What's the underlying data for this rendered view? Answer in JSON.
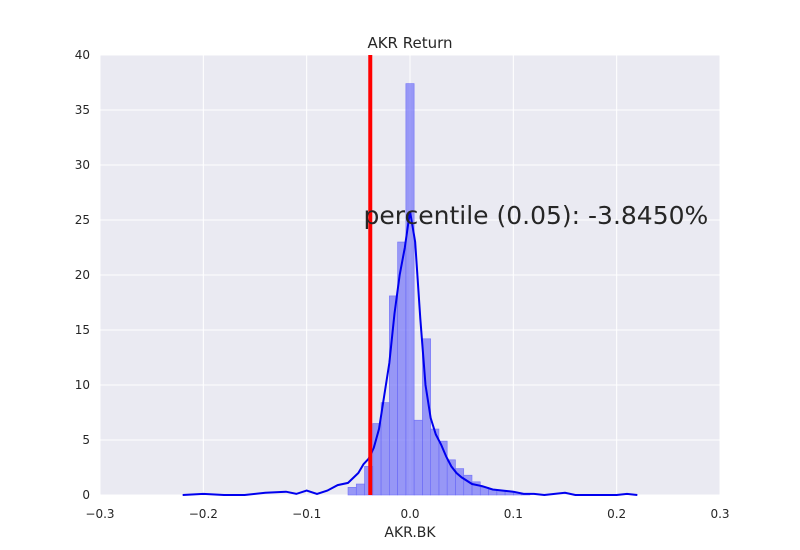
{
  "chart_data": {
    "type": "bar",
    "title": "AKR Return",
    "xlabel": "AKR.BK",
    "ylabel": "",
    "xlim": [
      -0.3,
      0.3
    ],
    "ylim": [
      0,
      40
    ],
    "xtick_labels": [
      "−0.3",
      "−0.2",
      "−0.1",
      "0.0",
      "0.1",
      "0.2",
      "0.3"
    ],
    "xtick_values": [
      -0.3,
      -0.2,
      -0.1,
      0.0,
      0.1,
      0.2,
      0.3
    ],
    "ytick_labels": [
      "0",
      "5",
      "10",
      "15",
      "20",
      "25",
      "30",
      "35",
      "40"
    ],
    "ytick_values": [
      0,
      5,
      10,
      15,
      20,
      25,
      30,
      35,
      40
    ],
    "grid": true,
    "histogram": {
      "bins": [
        [
          -0.06,
          -0.052,
          0.7
        ],
        [
          -0.052,
          -0.044,
          1.0
        ],
        [
          -0.044,
          -0.036,
          2.6
        ],
        [
          -0.036,
          -0.028,
          6.5
        ],
        [
          -0.028,
          -0.02,
          8.4
        ],
        [
          -0.02,
          -0.012,
          18.1
        ],
        [
          -0.012,
          -0.004,
          23.0
        ],
        [
          -0.004,
          0.004,
          37.4
        ],
        [
          0.004,
          0.012,
          6.8
        ],
        [
          0.012,
          0.02,
          14.2
        ],
        [
          0.02,
          0.028,
          6.0
        ],
        [
          0.028,
          0.036,
          4.9
        ],
        [
          0.036,
          0.044,
          3.2
        ],
        [
          0.044,
          0.052,
          2.4
        ],
        [
          0.052,
          0.06,
          1.8
        ],
        [
          0.06,
          0.068,
          1.2
        ],
        [
          0.068,
          0.076,
          0.7
        ],
        [
          0.076,
          0.084,
          0.5
        ],
        [
          0.084,
          0.092,
          0.4
        ],
        [
          0.092,
          0.1,
          0.3
        ],
        [
          0.1,
          0.108,
          0.2
        ],
        [
          0.108,
          0.116,
          0.1
        ]
      ],
      "color": "#6a6af7"
    },
    "kde": {
      "x": [
        -0.22,
        -0.2,
        -0.18,
        -0.16,
        -0.14,
        -0.12,
        -0.11,
        -0.1,
        -0.09,
        -0.08,
        -0.07,
        -0.06,
        -0.05,
        -0.045,
        -0.04,
        -0.035,
        -0.03,
        -0.025,
        -0.02,
        -0.015,
        -0.01,
        -0.005,
        0.0,
        0.005,
        0.01,
        0.015,
        0.02,
        0.025,
        0.03,
        0.035,
        0.04,
        0.045,
        0.05,
        0.06,
        0.07,
        0.08,
        0.09,
        0.1,
        0.11,
        0.12,
        0.13,
        0.14,
        0.15,
        0.16,
        0.18,
        0.2,
        0.21,
        0.22
      ],
      "y": [
        0.0,
        0.1,
        0.0,
        0.0,
        0.2,
        0.3,
        0.1,
        0.4,
        0.1,
        0.4,
        0.9,
        1.1,
        2.0,
        2.8,
        3.3,
        4.3,
        6.0,
        9.0,
        12.0,
        16.5,
        20.0,
        22.5,
        25.8,
        23.0,
        16.0,
        10.0,
        7.0,
        5.5,
        4.6,
        3.5,
        2.6,
        2.0,
        1.6,
        1.0,
        0.8,
        0.5,
        0.4,
        0.3,
        0.1,
        0.1,
        0.0,
        0.1,
        0.2,
        0.0,
        0.0,
        0.0,
        0.1,
        0.0
      ],
      "color": "#0000ee"
    },
    "percentile_line": {
      "x": -0.03845,
      "color": "#ff0000"
    },
    "annotation": {
      "text": "percentile (0.05): -3.8450%",
      "x": -0.045,
      "y": 25
    }
  }
}
